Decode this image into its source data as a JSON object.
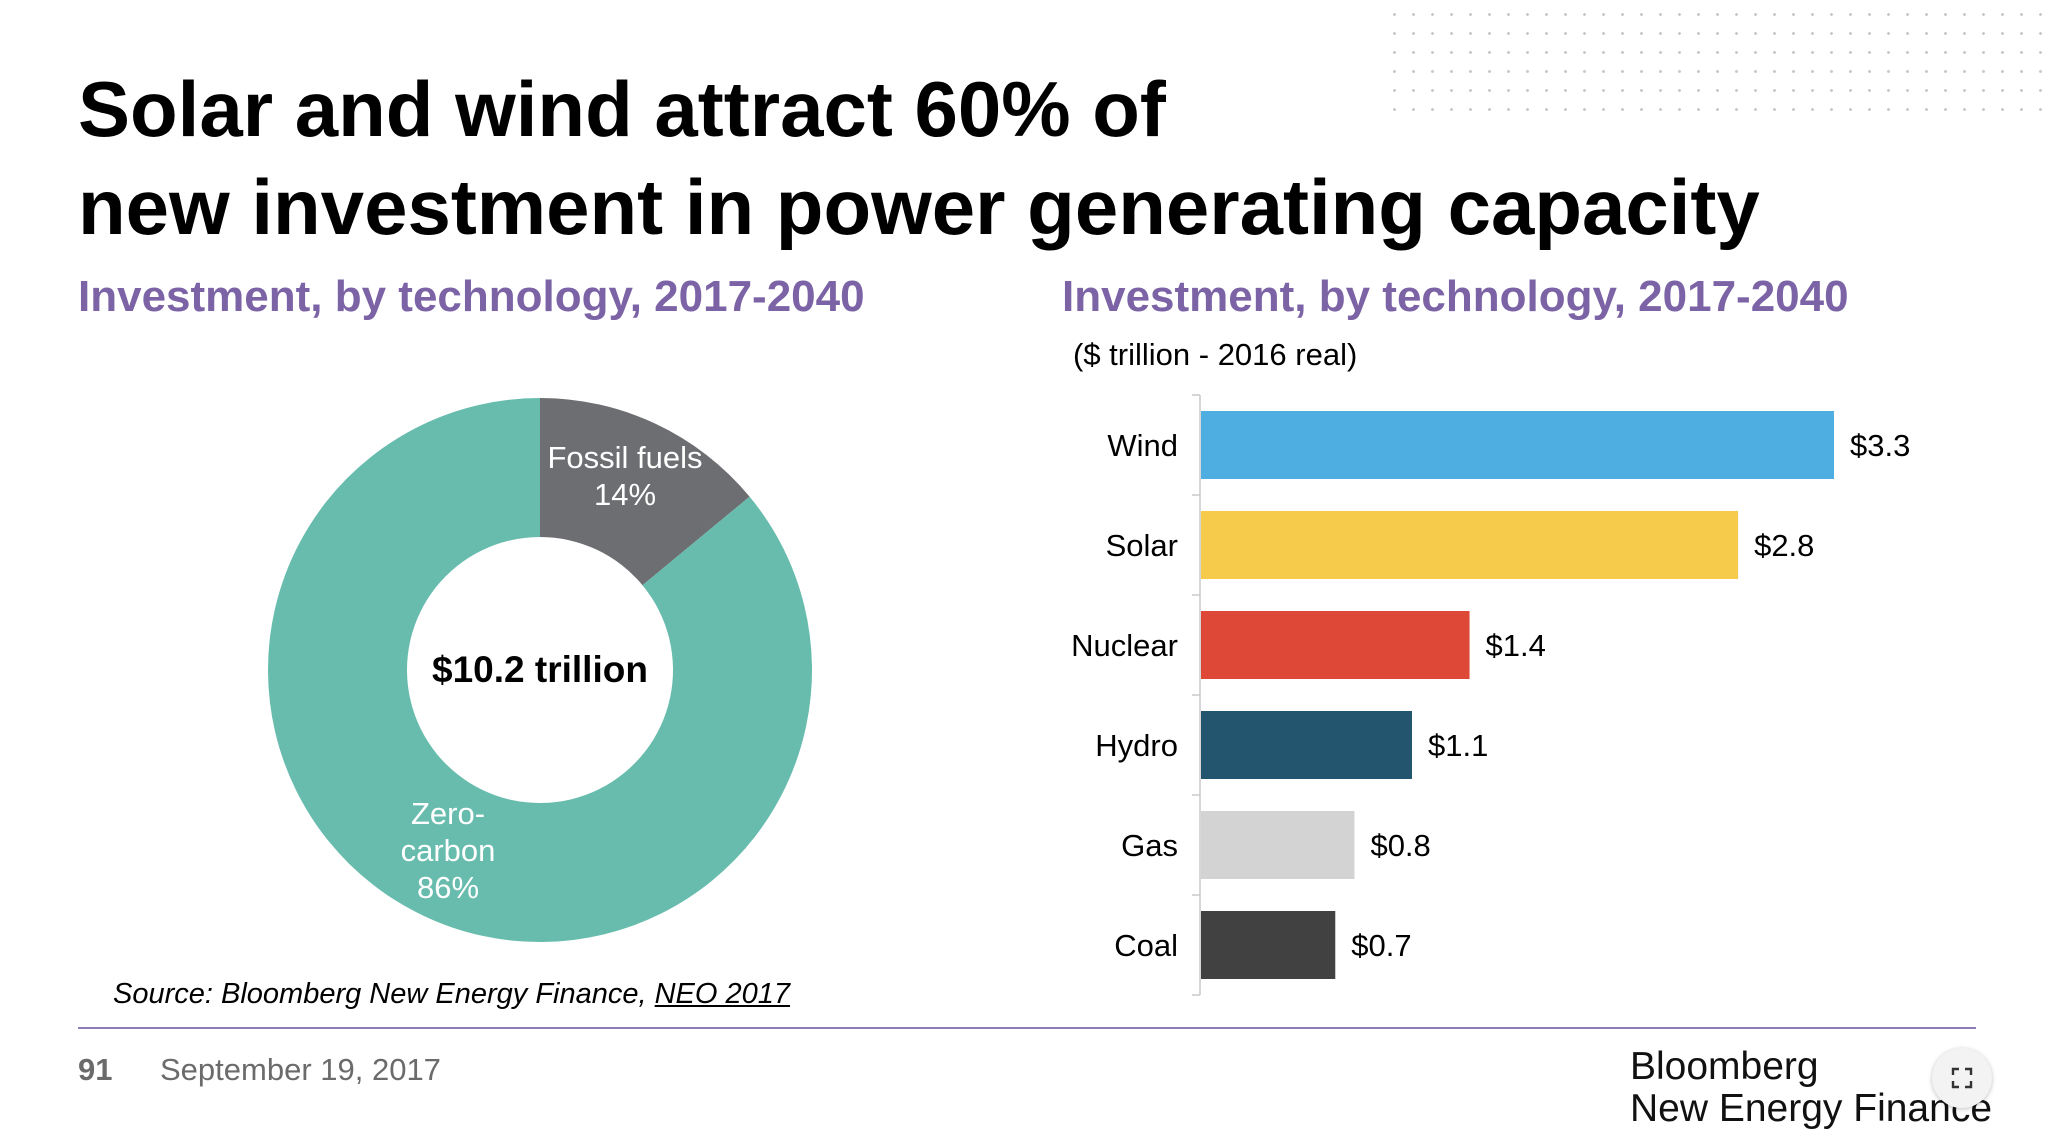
{
  "slide": {
    "title_line1": "Solar and wind attract 60% of",
    "title_line2": "new investment in power generating capacity",
    "page_number": "91",
    "date": "September 19, 2017",
    "source_prefix": "Source: Bloomberg New Energy Finance, ",
    "source_link": "NEO 2017",
    "logo_line1": "Bloomberg",
    "logo_line2": "New Energy Finance",
    "expand_icon": "expand-icon",
    "colors": {
      "title": "#000000",
      "section_title": "#7b63a6",
      "divider": "#8f7bb5",
      "footer_text": "#6b6b6b"
    }
  },
  "chart_data": [
    {
      "type": "pie",
      "title": "Investment, by technology, 2017-2040",
      "center_label": "$10.2 trillion",
      "slices": [
        {
          "label_lines": [
            "Fossil fuels",
            "14%"
          ],
          "value": 14,
          "color": "#6d6e71"
        },
        {
          "label_lines": [
            "Zero-",
            "carbon",
            "86%"
          ],
          "value": 86,
          "color": "#67bcad"
        }
      ]
    },
    {
      "type": "bar",
      "orientation": "horizontal",
      "title": "Investment, by technology, 2017-2040",
      "units": "($ trillion - 2016 real)",
      "categories": [
        "Wind",
        "Solar",
        "Nuclear",
        "Hydro",
        "Gas",
        "Coal"
      ],
      "values": [
        3.3,
        2.8,
        1.4,
        1.1,
        0.8,
        0.7
      ],
      "value_labels": [
        "$3.3",
        "$2.8",
        "$1.4",
        "$1.1",
        "$0.8",
        "$0.7"
      ],
      "colors": [
        "#4eaee2",
        "#f6cb4b",
        "#de4836",
        "#23556f",
        "#d3d3d3",
        "#414141"
      ],
      "xlim": [
        0,
        3.3
      ],
      "grid": false,
      "legend": "none"
    }
  ]
}
